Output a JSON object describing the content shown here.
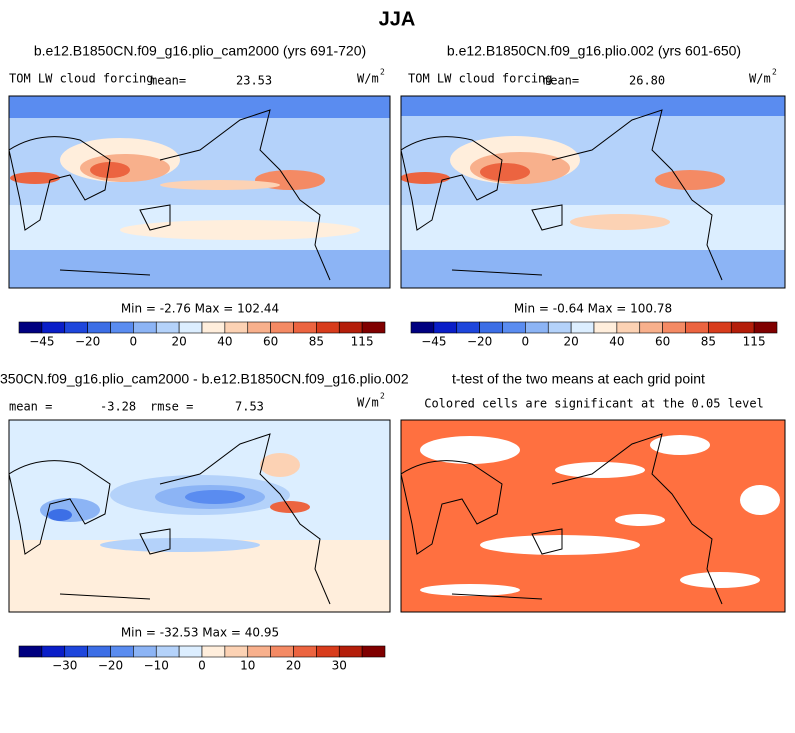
{
  "title": "JJA",
  "panels": [
    {
      "title": "b.e12.B1850CN.f09_g16.plio_cam2000 (yrs 691-720)",
      "variable": "TOM LW cloud forcing",
      "mean_label": "mean=",
      "mean": "23.53",
      "units": "W/m",
      "units_exponent": "2",
      "stats": "Min =  -2.76 Max = 102.44",
      "colorbar": {
        "colors": [
          "#000080",
          "#0a1ec8",
          "#1e46dc",
          "#3c6ee6",
          "#5a8cf0",
          "#8cb4f5",
          "#b4d2fa",
          "#dceeff",
          "#ffeedc",
          "#fcd2b4",
          "#f8b08c",
          "#f48a64",
          "#ec6440",
          "#d83c1c",
          "#b41e0a",
          "#800000"
        ],
        "ticks": [
          "−45",
          "−20",
          "0",
          "20",
          "40",
          "60",
          "85",
          "115"
        ]
      }
    },
    {
      "title": "b.e12.B1850CN.f09_g16.plio.002 (yrs 601-650)",
      "variable": "TOM LW cloud forcing",
      "mean_label": "mean=",
      "mean": "26.80",
      "units": "W/m",
      "units_exponent": "2",
      "stats": "Min =  -0.64 Max = 100.78",
      "colorbar": {
        "colors": [
          "#000080",
          "#0a1ec8",
          "#1e46dc",
          "#3c6ee6",
          "#5a8cf0",
          "#8cb4f5",
          "#b4d2fa",
          "#dceeff",
          "#ffeedc",
          "#fcd2b4",
          "#f8b08c",
          "#f48a64",
          "#ec6440",
          "#d83c1c",
          "#b41e0a",
          "#800000"
        ],
        "ticks": [
          "−45",
          "−20",
          "0",
          "20",
          "40",
          "60",
          "85",
          "115"
        ]
      }
    },
    {
      "title": "350CN.f09_g16.plio_cam2000 - b.e12.B1850CN.f09_g16.plio.002",
      "mean_label": "mean =",
      "mean": "-3.28",
      "rmse_label": "rmse =",
      "rmse": "7.53",
      "units": "W/m",
      "units_exponent": "2",
      "stats": "Min = -32.53 Max =  40.95",
      "colorbar": {
        "colors": [
          "#000080",
          "#0a1ec8",
          "#1e46dc",
          "#3c6ee6",
          "#5a8cf0",
          "#8cb4f5",
          "#b4d2fa",
          "#dceeff",
          "#ffeedc",
          "#fcd2b4",
          "#f8b08c",
          "#f48a64",
          "#ec6440",
          "#d83c1c",
          "#b41e0a",
          "#800000"
        ],
        "ticks": [
          "−30",
          "−20",
          "−10",
          "0",
          "10",
          "20",
          "30"
        ]
      }
    },
    {
      "title": "t-test of the two means at each grid point",
      "subtitle": "Colored cells are significant at the 0.05 level"
    }
  ]
}
